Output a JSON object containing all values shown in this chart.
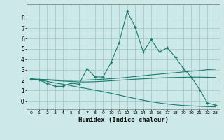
{
  "xlabel": "Humidex (Indice chaleur)",
  "bg_color": "#cce8e8",
  "grid_color": "#aacfcf",
  "line_color": "#1a7a6e",
  "x_main": [
    0,
    1,
    2,
    3,
    4,
    5,
    6,
    7,
    8,
    9,
    10,
    11,
    12,
    13,
    14,
    15,
    16,
    17,
    18,
    19,
    20,
    21,
    22,
    23
  ],
  "y_main": [
    2.1,
    2.0,
    1.7,
    1.4,
    1.4,
    1.7,
    1.6,
    3.1,
    2.3,
    2.3,
    3.7,
    5.6,
    8.6,
    7.1,
    4.7,
    5.9,
    4.7,
    5.1,
    4.2,
    3.1,
    2.3,
    1.1,
    -0.2,
    -0.4
  ],
  "y_trend1": [
    2.1,
    2.07,
    2.04,
    2.01,
    1.98,
    1.97,
    1.98,
    2.0,
    2.04,
    2.08,
    2.13,
    2.19,
    2.26,
    2.34,
    2.42,
    2.5,
    2.57,
    2.64,
    2.71,
    2.78,
    2.85,
    2.9,
    3.0,
    3.05
  ],
  "y_trend2": [
    2.1,
    2.06,
    2.02,
    1.95,
    1.9,
    1.86,
    1.82,
    1.82,
    1.84,
    1.88,
    1.93,
    1.98,
    2.03,
    2.08,
    2.12,
    2.16,
    2.2,
    2.23,
    2.25,
    2.27,
    2.28,
    2.28,
    2.27,
    2.25
  ],
  "y_trend3": [
    2.1,
    2.0,
    1.88,
    1.72,
    1.6,
    1.46,
    1.3,
    1.18,
    1.02,
    0.88,
    0.72,
    0.55,
    0.38,
    0.22,
    0.06,
    -0.08,
    -0.2,
    -0.3,
    -0.38,
    -0.44,
    -0.48,
    -0.52,
    -0.55,
    -0.58
  ],
  "ylim": [
    -0.8,
    9.3
  ],
  "xlim": [
    -0.5,
    23.5
  ],
  "ytick_vals": [
    0,
    1,
    2,
    3,
    4,
    5,
    6,
    7,
    8
  ],
  "ytick_labels": [
    "-0",
    "1",
    "2",
    "3",
    "4",
    "5",
    "6",
    "7",
    "8"
  ],
  "xticks": [
    0,
    1,
    2,
    3,
    4,
    5,
    6,
    7,
    8,
    9,
    10,
    11,
    12,
    13,
    14,
    15,
    16,
    17,
    18,
    19,
    20,
    21,
    22,
    23
  ]
}
